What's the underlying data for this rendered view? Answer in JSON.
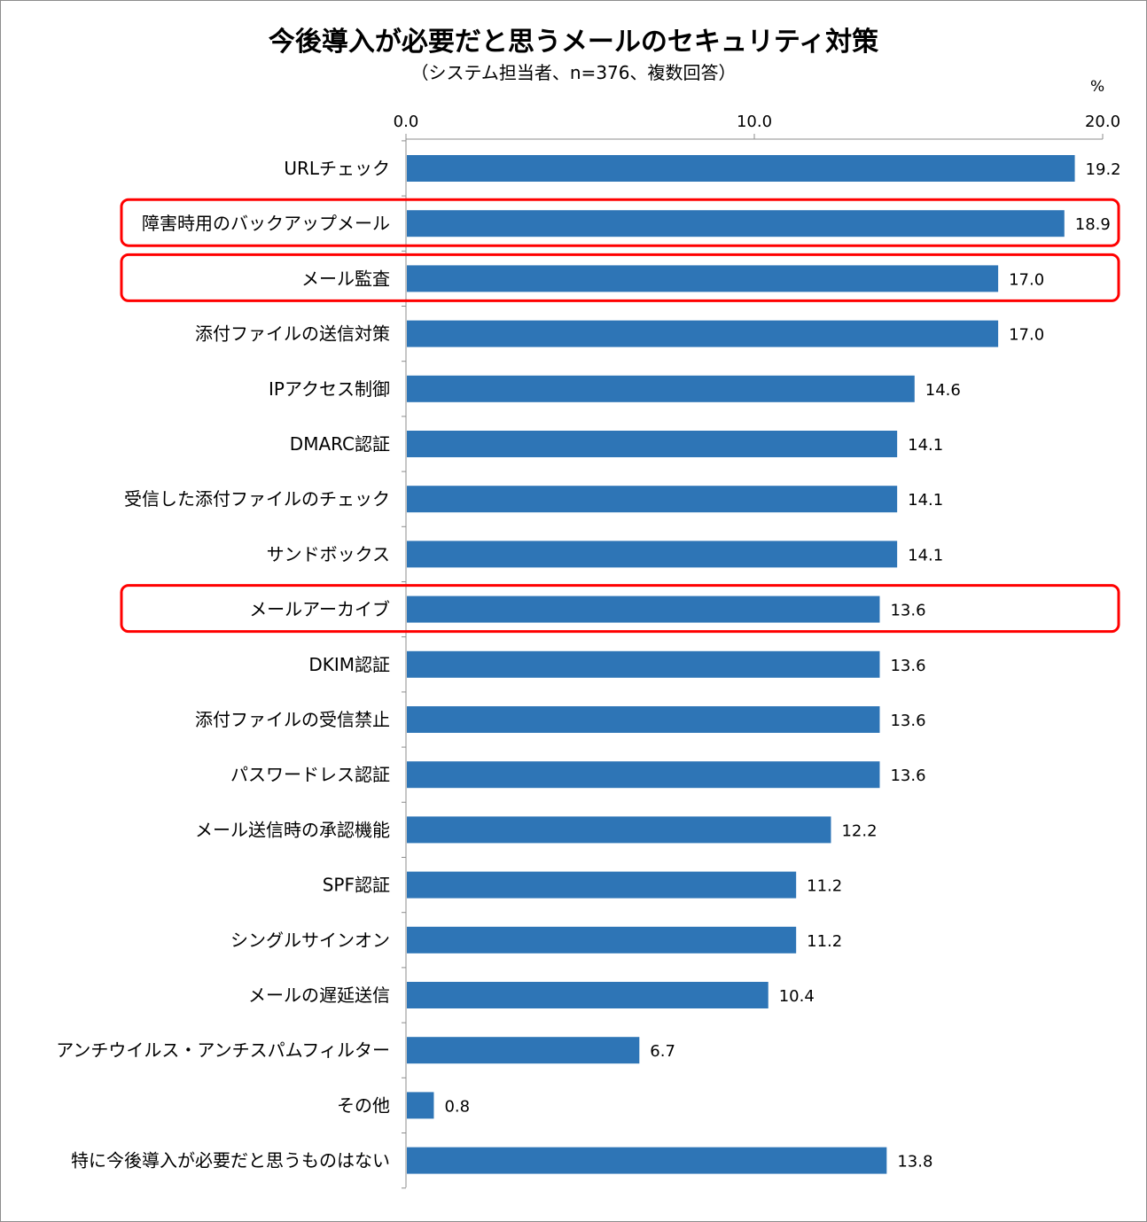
{
  "chart_data": {
    "type": "bar",
    "orientation": "horizontal",
    "title": "今後導入が必要だと思うメールのセキュリティ対策",
    "subtitle": "（システム担当者、n=376、複数回答）",
    "unit": "%",
    "xlim": [
      0,
      20
    ],
    "ticks": [
      0,
      10,
      20
    ],
    "tick_labels": [
      "0.0",
      "10.0",
      "20.0"
    ],
    "axis_position": "top",
    "grid": false,
    "bar_color": "#2e75b6",
    "highlight_color": "#ff0000",
    "categories": [
      "URLチェック",
      "障害時用のバックアップメール",
      "メール監査",
      "添付ファイルの送信対策",
      "IPアクセス制御",
      "DMARC認証",
      "受信した添付ファイルのチェック",
      "サンドボックス",
      "メールアーカイブ",
      "DKIM認証",
      "添付ファイルの受信禁止",
      "パスワードレス認証",
      "メール送信時の承認機能",
      "SPF認証",
      "シングルサインオン",
      "メールの遅延送信",
      "アンチウイルス・アンチスパムフィルター",
      "その他",
      "特に今後導入が必要だと思うものはない"
    ],
    "values": [
      19.2,
      18.9,
      17.0,
      17.0,
      14.6,
      14.1,
      14.1,
      14.1,
      13.6,
      13.6,
      13.6,
      13.6,
      12.2,
      11.2,
      11.2,
      10.4,
      6.7,
      0.8,
      13.8
    ],
    "value_labels": [
      "19.2",
      "18.9",
      "17.0",
      "17.0",
      "14.6",
      "14.1",
      "14.1",
      "14.1",
      "13.6",
      "13.6",
      "13.6",
      "13.6",
      "12.2",
      "11.2",
      "11.2",
      "10.4",
      "6.7",
      "0.8",
      "13.8"
    ],
    "highlighted_categories": [
      "障害時用のバックアップメール",
      "メール監査",
      "メールアーカイブ"
    ]
  }
}
